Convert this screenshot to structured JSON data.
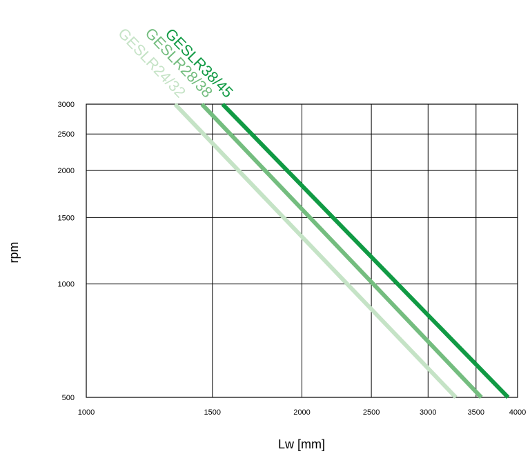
{
  "chart_data": {
    "type": "line",
    "xlabel": "Lw [mm]",
    "ylabel": "rpm",
    "x_scale": "log",
    "y_scale": "log",
    "xlim": [
      1000,
      4000
    ],
    "ylim": [
      500,
      3000
    ],
    "x_ticks": [
      1000,
      1500,
      2000,
      2500,
      3000,
      3500,
      4000
    ],
    "y_ticks": [
      500,
      1000,
      1500,
      2000,
      2500,
      3000
    ],
    "grid": true,
    "legend": "labels at top of lines, rotated",
    "series": [
      {
        "name": "GESLR24/32",
        "color": "#c5e3c6",
        "x": [
          1330,
          3280
        ],
        "y": [
          3000,
          500
        ]
      },
      {
        "name": "GESLR28/38",
        "color": "#74bd7f",
        "x": [
          1450,
          3560
        ],
        "y": [
          3000,
          500
        ]
      },
      {
        "name": "GESLR38/45",
        "color": "#119a44",
        "x": [
          1550,
          3880
        ],
        "y": [
          3000,
          500
        ]
      }
    ]
  }
}
